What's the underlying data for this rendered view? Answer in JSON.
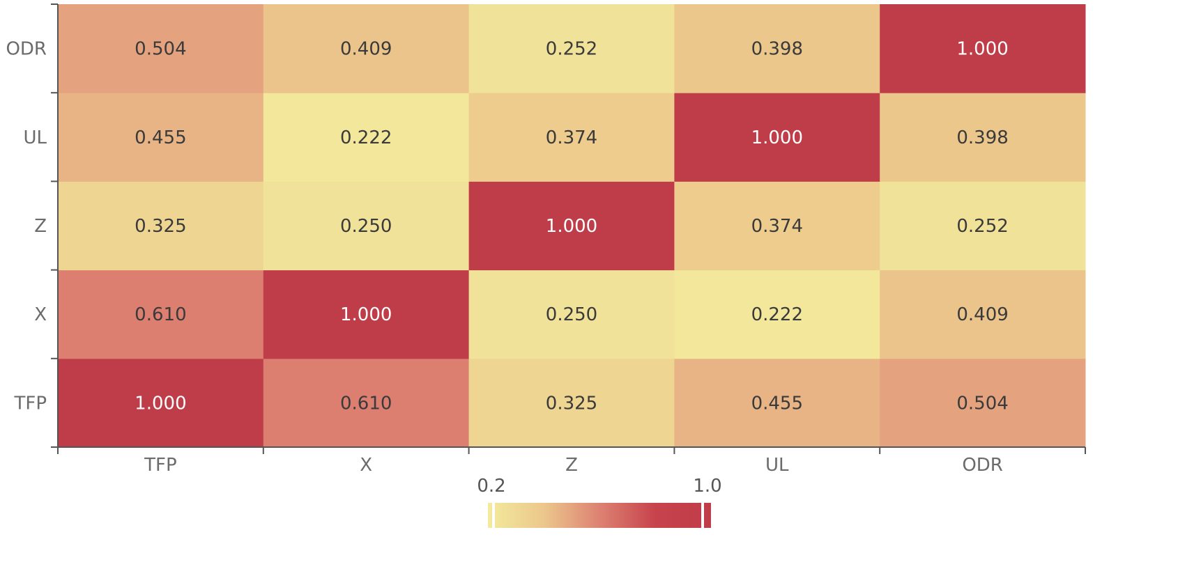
{
  "chart_data": {
    "type": "heatmap",
    "x_categories": [
      "TFP",
      "X",
      "Z",
      "UL",
      "ODR"
    ],
    "y_categories": [
      "TFP",
      "X",
      "Z",
      "UL",
      "ODR"
    ],
    "values": [
      [
        1.0,
        0.61,
        0.325,
        0.455,
        0.504
      ],
      [
        0.61,
        1.0,
        0.25,
        0.222,
        0.409
      ],
      [
        0.325,
        0.25,
        1.0,
        0.374,
        0.252
      ],
      [
        0.455,
        0.222,
        0.374,
        1.0,
        0.398
      ],
      [
        0.504,
        0.409,
        0.252,
        0.398,
        1.0
      ]
    ],
    "value_format_decimals": 3,
    "visual_map": {
      "min": 0.2,
      "max": 1.0,
      "min_label": "0.2",
      "max_label": "1.0",
      "colors": [
        "#f3eb9d",
        "#ecc78c",
        "#dd8272",
        "#c7434c",
        "#bf3d49"
      ]
    },
    "text_colors": {
      "dark": "#3a3a3a",
      "light": "#ffffff"
    },
    "axis_color": "#555555",
    "xlabel": "",
    "ylabel": "",
    "title": ""
  }
}
